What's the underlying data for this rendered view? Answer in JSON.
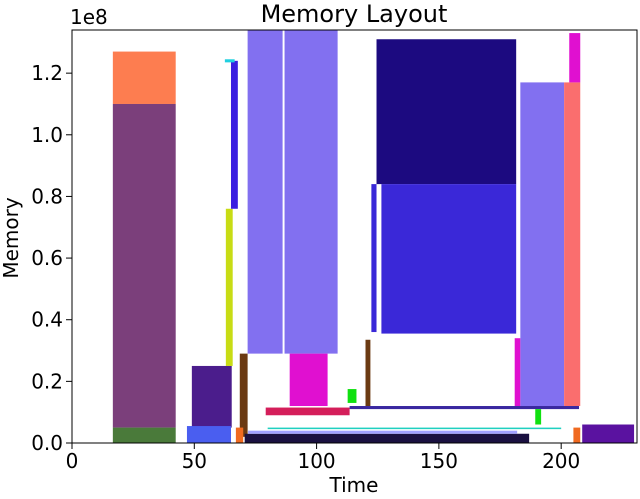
{
  "chart_data": {
    "type": "rect",
    "title": "Memory Layout",
    "x_label": "Time",
    "y_label": "Memory",
    "y_offset_label": "1e8",
    "xlim": [
      0,
      231
    ],
    "ylim": [
      0,
      134000000
    ],
    "xticks": [
      0,
      50,
      100,
      150,
      200
    ],
    "yticks": [
      {
        "value": 0,
        "label": "0.0"
      },
      {
        "value": 20000000,
        "label": "0.2"
      },
      {
        "value": 40000000,
        "label": "0.4"
      },
      {
        "value": 60000000,
        "label": "0.6"
      },
      {
        "value": 80000000,
        "label": "0.8"
      },
      {
        "value": 100000000,
        "label": "1.0"
      },
      {
        "value": 120000000,
        "label": "1.2"
      }
    ],
    "blocks": [
      {
        "x": [
          16.7,
          42.4
        ],
        "y": [
          110000000,
          127000000
        ],
        "color": "#fd7d50"
      },
      {
        "x": [
          16.7,
          42.4
        ],
        "y": [
          5000000,
          110000000
        ],
        "color": "#7b3f7b"
      },
      {
        "x": [
          16.7,
          42.4
        ],
        "y": [
          0,
          5000000
        ],
        "color": "#4a7a3a"
      },
      {
        "x": [
          49,
          65.3
        ],
        "y": [
          5000000,
          25000000
        ],
        "color": "#4b1d8c"
      },
      {
        "x": [
          47,
          65
        ],
        "y": [
          0,
          5500000
        ],
        "color": "#4a5ef0"
      },
      {
        "x": [
          62.9,
          65.7
        ],
        "y": [
          25000000,
          76000000
        ],
        "color": "#c8dc14"
      },
      {
        "x": [
          65,
          67.8
        ],
        "y": [
          76000000,
          124000000
        ],
        "color": "#3a1ee0"
      },
      {
        "x": [
          62.5,
          66.5
        ],
        "y": [
          123500000,
          124500000
        ],
        "color": "#20d0e0"
      },
      {
        "x": [
          68.6,
          71.8
        ],
        "y": [
          2000000,
          29000000
        ],
        "color": "#6b3a12"
      },
      {
        "x": [
          71.8,
          86.1
        ],
        "y": [
          29000000,
          134000000
        ],
        "color": "#8270f0"
      },
      {
        "x": [
          86.9,
          108.6
        ],
        "y": [
          29000000,
          134000000
        ],
        "color": "#8270f0"
      },
      {
        "x": [
          89,
          104.5
        ],
        "y": [
          12000000,
          29000000
        ],
        "color": "#e010d0"
      },
      {
        "x": [
          79.2,
          113.5
        ],
        "y": [
          9000000,
          11500000
        ],
        "color": "#d41e5a"
      },
      {
        "x": [
          112.7,
          116.3
        ],
        "y": [
          13000000,
          17500000
        ],
        "color": "#10e010"
      },
      {
        "x": [
          120,
          122
        ],
        "y": [
          12000000,
          33500000
        ],
        "color": "#6b3a12"
      },
      {
        "x": [
          124.5,
          181.6
        ],
        "y": [
          84000000,
          131000000
        ],
        "color": "#1c0a80"
      },
      {
        "x": [
          126.5,
          181.6
        ],
        "y": [
          35500000,
          84000000
        ],
        "color": "#3a28d8"
      },
      {
        "x": [
          122.4,
          124.5
        ],
        "y": [
          36000000,
          84000000
        ],
        "color": "#3a28d8"
      },
      {
        "x": [
          183.3,
          201.2
        ],
        "y": [
          12000000,
          117000000
        ],
        "color": "#8270f0"
      },
      {
        "x": [
          201.2,
          207.8
        ],
        "y": [
          12000000,
          117000000
        ],
        "color": "#fa6e6e"
      },
      {
        "x": [
          203.3,
          207.8
        ],
        "y": [
          117000000,
          133000000
        ],
        "color": "#e010d0"
      },
      {
        "x": [
          181,
          183.3
        ],
        "y": [
          12000000,
          34000000
        ],
        "color": "#e010d0"
      },
      {
        "x": [
          208.6,
          229.8
        ],
        "y": [
          0,
          6000000
        ],
        "color": "#5a12a0"
      },
      {
        "x": [
          70.6,
          186.9
        ],
        "y": [
          0,
          3000000
        ],
        "color": "#1a1040"
      },
      {
        "x": [
          113.5,
          207.3
        ],
        "y": [
          11000000,
          12000000
        ],
        "color": "#3a28a0"
      },
      {
        "x": [
          189.4,
          191.8
        ],
        "y": [
          6000000,
          11000000
        ],
        "color": "#10e010"
      },
      {
        "x": [
          67,
          70
        ],
        "y": [
          0,
          5000000
        ],
        "color": "#f06a20"
      },
      {
        "x": [
          205,
          207.8
        ],
        "y": [
          0,
          5000000
        ],
        "color": "#f06a20"
      },
      {
        "x": [
          72,
          182
        ],
        "y": [
          3000000,
          4000000
        ],
        "color": "#a0a0ff"
      },
      {
        "x": [
          80,
          200
        ],
        "y": [
          4500000,
          5000000
        ],
        "color": "#20d0c0"
      }
    ]
  }
}
